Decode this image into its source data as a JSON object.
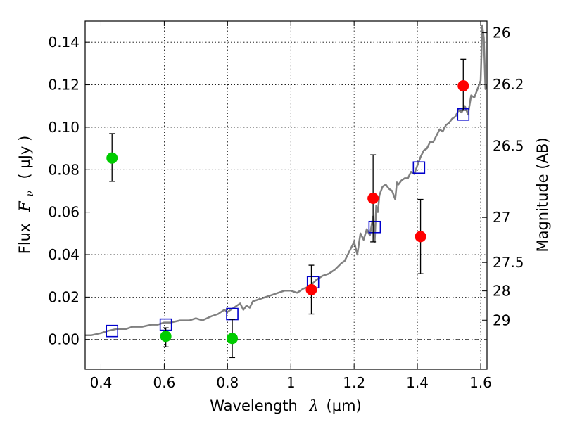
{
  "chart_data": {
    "type": "scatter",
    "xlabel_text": "Wavelength",
    "xlabel_symbol": "λ",
    "xlabel_unit": "(μm)",
    "ylabel_text": "Flux",
    "ylabel_symbol": "F",
    "ylabel_subscript": "ν",
    "ylabel_unit": "( μJy )",
    "y2label": "Magnitude (AB)",
    "xlim": [
      0.35,
      1.62
    ],
    "ylim": [
      -0.014,
      0.15
    ],
    "grid": true,
    "xticks": [
      0.4,
      0.6,
      0.8,
      1.0,
      1.2,
      1.4,
      1.6
    ],
    "xtick_labels": [
      "0.4",
      "0.6",
      "0.8",
      "1",
      "1.2",
      "1.4",
      "1.6"
    ],
    "yticks": [
      0.0,
      0.02,
      0.04,
      0.06,
      0.08,
      0.1,
      0.12,
      0.14
    ],
    "ytick_labels": [
      "0.00",
      "0.02",
      "0.04",
      "0.06",
      "0.08",
      "0.10",
      "0.12",
      "0.14"
    ],
    "y2ticks": [
      {
        "label": "26",
        "flux": 0.1445
      },
      {
        "label": "26.2",
        "flux": 0.1202
      },
      {
        "label": "26.5",
        "flux": 0.0912
      },
      {
        "label": "27",
        "flux": 0.0575
      },
      {
        "label": "27.5",
        "flux": 0.0363
      },
      {
        "label": "28",
        "flux": 0.0229
      },
      {
        "label": "29",
        "flux": 0.0091
      }
    ],
    "series": [
      {
        "kind": "line",
        "color": "#808080",
        "x": [
          0.35,
          0.37,
          0.4,
          0.42,
          0.45,
          0.48,
          0.5,
          0.53,
          0.56,
          0.58,
          0.6,
          0.62,
          0.65,
          0.68,
          0.7,
          0.72,
          0.75,
          0.77,
          0.79,
          0.8,
          0.82,
          0.84,
          0.85,
          0.86,
          0.87,
          0.88,
          0.9,
          0.92,
          0.94,
          0.96,
          0.98,
          1.0,
          1.02,
          1.04,
          1.06,
          1.08,
          1.1,
          1.12,
          1.14,
          1.16,
          1.17,
          1.18,
          1.19,
          1.2,
          1.21,
          1.22,
          1.23,
          1.24,
          1.25,
          1.26,
          1.265,
          1.27,
          1.275,
          1.28,
          1.29,
          1.3,
          1.31,
          1.32,
          1.33,
          1.335,
          1.34,
          1.35,
          1.36,
          1.37,
          1.38,
          1.39,
          1.4,
          1.41,
          1.42,
          1.43,
          1.44,
          1.45,
          1.46,
          1.47,
          1.48,
          1.49,
          1.5,
          1.51,
          1.52,
          1.53,
          1.54,
          1.55,
          1.56,
          1.57,
          1.58,
          1.59,
          1.6,
          1.605,
          1.61,
          1.615,
          1.62
        ],
        "values": [
          0.002,
          0.002,
          0.003,
          0.004,
          0.005,
          0.005,
          0.006,
          0.006,
          0.007,
          0.007,
          0.008,
          0.008,
          0.009,
          0.009,
          0.01,
          0.009,
          0.011,
          0.012,
          0.014,
          0.013,
          0.015,
          0.017,
          0.014,
          0.016,
          0.015,
          0.018,
          0.019,
          0.02,
          0.021,
          0.022,
          0.023,
          0.023,
          0.022,
          0.024,
          0.025,
          0.028,
          0.03,
          0.031,
          0.033,
          0.036,
          0.037,
          0.04,
          0.043,
          0.046,
          0.04,
          0.05,
          0.047,
          0.052,
          0.049,
          0.058,
          0.046,
          0.063,
          0.06,
          0.068,
          0.072,
          0.073,
          0.071,
          0.07,
          0.066,
          0.074,
          0.073,
          0.075,
          0.076,
          0.076,
          0.079,
          0.078,
          0.082,
          0.086,
          0.089,
          0.09,
          0.093,
          0.093,
          0.096,
          0.099,
          0.098,
          0.101,
          0.102,
          0.104,
          0.105,
          0.108,
          0.107,
          0.11,
          0.106,
          0.115,
          0.114,
          0.118,
          0.122,
          0.148,
          0.142,
          0.118,
          0.12
        ]
      },
      {
        "kind": "squares",
        "color": "#0000cc",
        "x": [
          0.435,
          0.605,
          0.815,
          1.07,
          1.265,
          1.405,
          1.545
        ],
        "values": [
          0.004,
          0.007,
          0.012,
          0.027,
          0.053,
          0.081,
          0.106
        ]
      },
      {
        "kind": "points",
        "color": "#00cc00",
        "x": [
          0.435,
          0.605,
          0.815
        ],
        "values": [
          0.0855,
          0.0015,
          0.0005
        ],
        "yerr_low": [
          0.011,
          0.005,
          0.009
        ],
        "yerr_high": [
          0.0115,
          0.004,
          0.009
        ]
      },
      {
        "kind": "points",
        "color": "#ff0000",
        "x": [
          1.065,
          1.26,
          1.41,
          1.545
        ],
        "values": [
          0.0235,
          0.0665,
          0.0485,
          0.1195
        ],
        "yerr_low": [
          0.0115,
          0.0205,
          0.0175,
          0.0115
        ],
        "yerr_high": [
          0.0115,
          0.0205,
          0.0175,
          0.0125
        ]
      }
    ],
    "reference_line": {
      "value": 0.0,
      "style": "dash-dot",
      "color": "#000000"
    }
  }
}
